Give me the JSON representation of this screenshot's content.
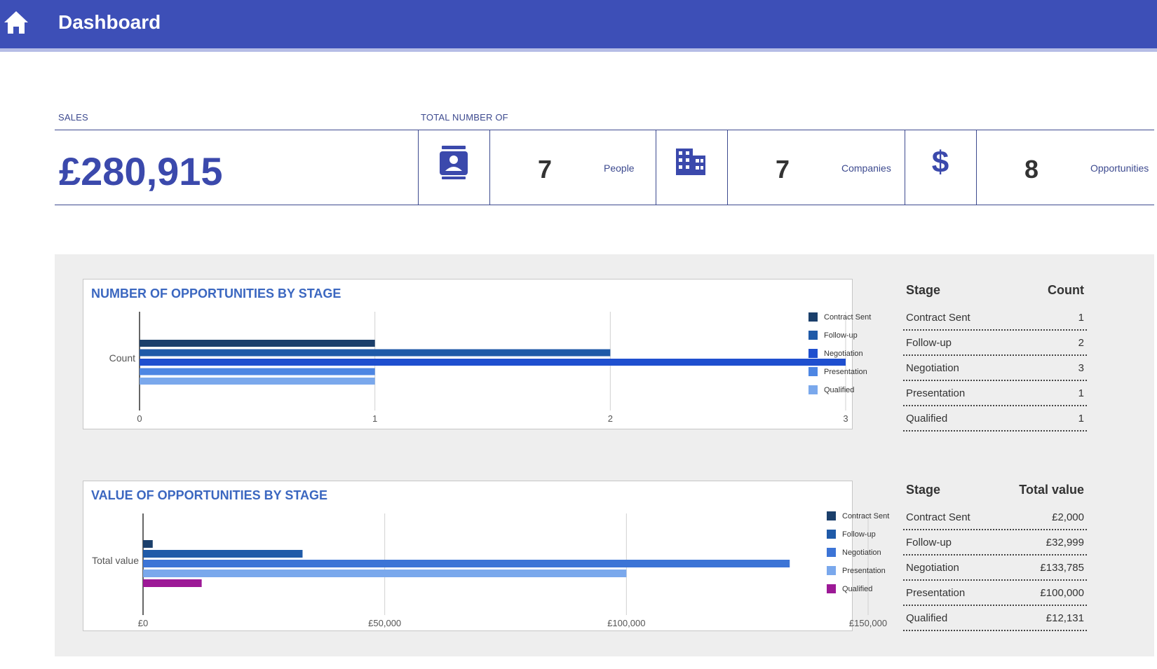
{
  "header": {
    "title": "Dashboard",
    "home_icon": "home-icon"
  },
  "sales": {
    "label": "SALES",
    "value": "£280,915"
  },
  "totals": {
    "label": "TOTAL NUMBER OF",
    "people": {
      "icon": "contact-card-icon",
      "count": "7",
      "label": "People"
    },
    "companies": {
      "icon": "building-icon",
      "count": "7",
      "label": "Companies"
    },
    "opportunities": {
      "icon": "dollar-icon",
      "count": "8",
      "label": "Opportunities"
    }
  },
  "colors": {
    "accent": "#3d4fb7",
    "contract_sent": "#1b3f6b",
    "follow_up": "#1f5aa8",
    "negotiation": "#1f4fcf",
    "negotiation_value": "#3c74d6",
    "presentation": "#4d86e3",
    "qualified_count": "#7aa8ec",
    "qualified_value": "#9c1996"
  },
  "chart_data": [
    {
      "type": "bar",
      "orientation": "horizontal",
      "title": "NUMBER OF OPPORTUNITIES BY STAGE",
      "ylabel": "Count",
      "xlim": [
        0,
        3
      ],
      "ticks": [
        "0",
        "1",
        "2",
        "3"
      ],
      "grid": true,
      "legend": "right",
      "series": [
        {
          "name": "Contract Sent",
          "value": 1,
          "color": "#1b3f6b"
        },
        {
          "name": "Follow-up",
          "value": 2,
          "color": "#1f5aa8"
        },
        {
          "name": "Negotiation",
          "value": 3,
          "color": "#1f4fcf"
        },
        {
          "name": "Presentation",
          "value": 1,
          "color": "#4d86e3"
        },
        {
          "name": "Qualified",
          "value": 1,
          "color": "#7aa8ec"
        }
      ]
    },
    {
      "type": "bar",
      "orientation": "horizontal",
      "title": "VALUE OF OPPORTUNITIES BY STAGE",
      "ylabel": "Total value",
      "xlim": [
        0,
        150000
      ],
      "ticks": [
        "£0",
        "£50,000",
        "£100,000",
        "£150,000"
      ],
      "grid": true,
      "legend": "right",
      "series": [
        {
          "name": "Contract Sent",
          "value": 2000,
          "color": "#1b3f6b"
        },
        {
          "name": "Follow-up",
          "value": 32999,
          "color": "#1f5aa8"
        },
        {
          "name": "Negotiation",
          "value": 133785,
          "color": "#3c74d6"
        },
        {
          "name": "Presentation",
          "value": 100000,
          "color": "#7aa8ec"
        },
        {
          "name": "Qualified",
          "value": 12131,
          "color": "#9c1996"
        }
      ]
    }
  ],
  "count_table": {
    "headers": [
      "Stage",
      "Count"
    ],
    "rows": [
      [
        "Contract Sent",
        "1"
      ],
      [
        "Follow-up",
        "2"
      ],
      [
        "Negotiation",
        "3"
      ],
      [
        "Presentation",
        "1"
      ],
      [
        "Qualified",
        "1"
      ]
    ]
  },
  "value_table": {
    "headers": [
      "Stage",
      "Total value"
    ],
    "rows": [
      [
        "Contract Sent",
        "£2,000"
      ],
      [
        "Follow-up",
        "£32,999"
      ],
      [
        "Negotiation",
        "£133,785"
      ],
      [
        "Presentation",
        "£100,000"
      ],
      [
        "Qualified",
        "£12,131"
      ]
    ]
  }
}
